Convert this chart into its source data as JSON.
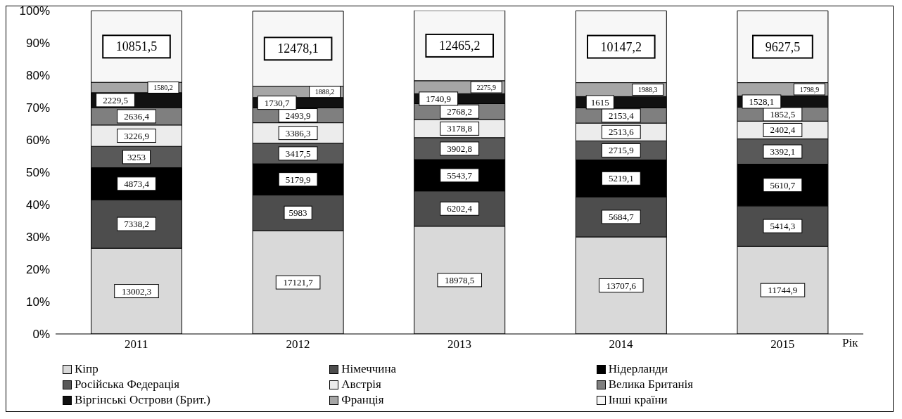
{
  "chart_data": {
    "type": "bar",
    "stacked": true,
    "xlabel": "Рік",
    "categories": [
      "2011",
      "2012",
      "2013",
      "2014",
      "2015"
    ],
    "ylim": [
      0,
      100
    ],
    "yticks": [
      {
        "value": 0,
        "label": "0%"
      },
      {
        "value": 10,
        "label": "10%"
      },
      {
        "value": 20,
        "label": "20%"
      },
      {
        "value": 30,
        "label": "30%"
      },
      {
        "value": 40,
        "label": "40%"
      },
      {
        "value": 50,
        "label": "50%"
      },
      {
        "value": 60,
        "label": "60%"
      },
      {
        "value": 70,
        "label": "70%"
      },
      {
        "value": 80,
        "label": "80%"
      },
      {
        "value": 90,
        "label": "90%"
      },
      {
        "value": 100,
        "label": "100%"
      }
    ],
    "legend": "bottom",
    "series": [
      {
        "name": "Кіпр",
        "color": "#d9d9d9",
        "values": [
          26.5,
          31.9,
          33.3,
          30.0,
          27.1
        ]
      },
      {
        "name": "Німеччина",
        "color": "#4d4d4d",
        "values": [
          15.0,
          11.1,
          10.9,
          12.4,
          12.5
        ]
      },
      {
        "name": "Нідерланди",
        "color": "#000000",
        "values": [
          9.9,
          9.6,
          9.7,
          11.4,
          12.9
        ]
      },
      {
        "name": "Російська Федерація",
        "color": "#595959",
        "values": [
          6.6,
          6.4,
          6.8,
          5.9,
          7.8
        ]
      },
      {
        "name": "Австрія",
        "color": "#ececec",
        "values": [
          6.6,
          6.3,
          5.6,
          5.5,
          5.5
        ]
      },
      {
        "name": "Велика Британія",
        "color": "#7f7f7f",
        "values": [
          5.4,
          4.6,
          4.9,
          4.7,
          4.3
        ]
      },
      {
        "name": "Віргінські Острови (Брит.)",
        "color": "#111111",
        "values": [
          4.6,
          3.2,
          3.1,
          3.5,
          3.5
        ]
      },
      {
        "name": "Франція",
        "color": "#a6a6a6",
        "values": [
          3.2,
          3.5,
          4.0,
          4.3,
          4.1
        ]
      },
      {
        "name": "Інші країни",
        "color": "#f7f7f7",
        "values": [
          22.1,
          23.2,
          21.7,
          22.2,
          22.2
        ]
      }
    ],
    "annotations": [
      "13002,3",
      "7338,2",
      "4873,4",
      "3253",
      "3226,9",
      "2636,4",
      "2229,5",
      "1580,2",
      "10851,5",
      "17121,7",
      "5983",
      "5179,9",
      "3417,5",
      "3386,3",
      "2493,9",
      "1730,7",
      "1888,2",
      "12478,1",
      "18978,5",
      "6202,4",
      "5543,7",
      "3902,8",
      "3178,8",
      "2768,2",
      "1740,9",
      "2275,9",
      "12465,2",
      "13707,6",
      "5684,7",
      "5219,1",
      "2715,9",
      "2513,6",
      "2153,4",
      "1615",
      "1988,3",
      "10147,2",
      "11744,9",
      "5414,3",
      "5610,7",
      "3392,1",
      "2402,4",
      "1852,5",
      "1528,1",
      "1798,9",
      "9627,5"
    ]
  }
}
